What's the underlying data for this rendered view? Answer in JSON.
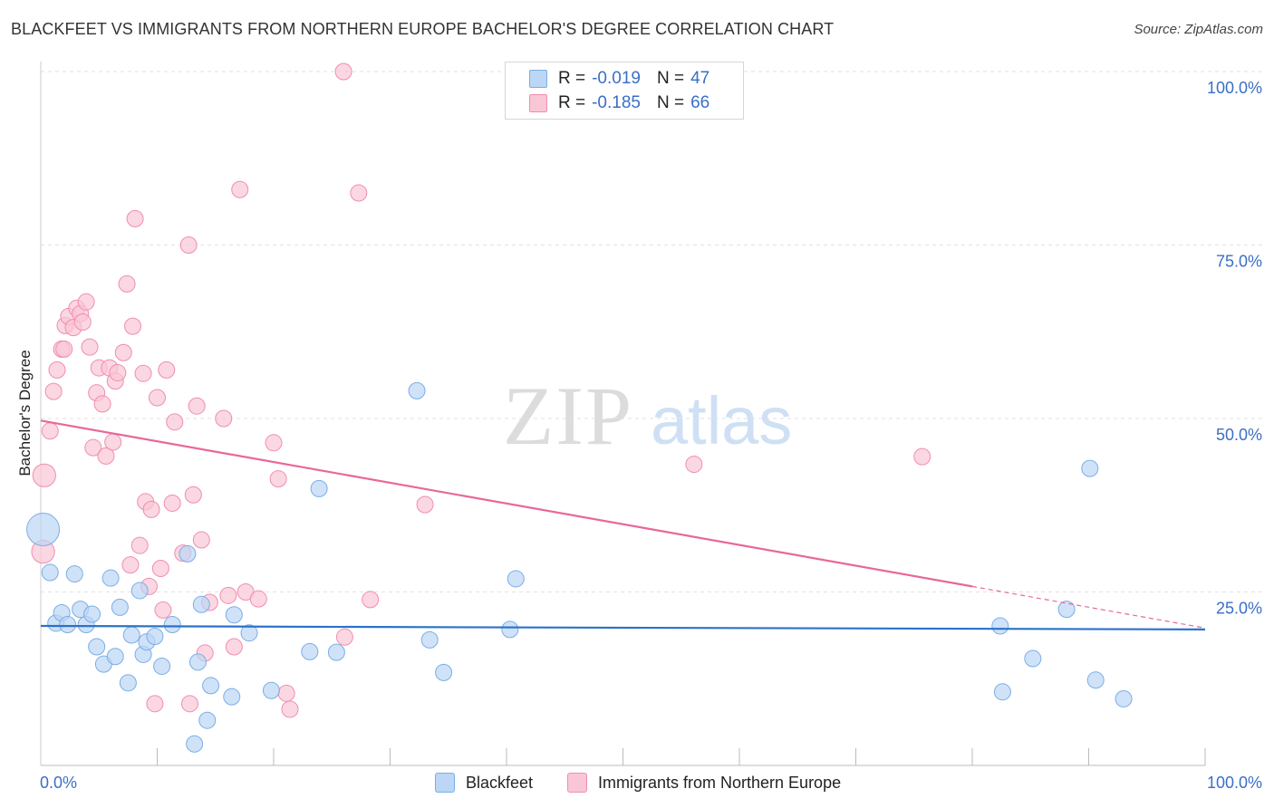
{
  "chart_data": {
    "type": "scatter",
    "title": "BLACKFEET VS IMMIGRANTS FROM NORTHERN EUROPE BACHELOR'S DEGREE CORRELATION CHART",
    "source": "Source: ZipAtlas.com",
    "xlabel": "",
    "ylabel": "Bachelor's Degree",
    "xlim": [
      0,
      100
    ],
    "ylim": [
      0,
      100
    ],
    "x_tick_labels": [
      "0.0%",
      "100.0%"
    ],
    "y_tick_labels": [
      {
        "value": 25,
        "label": "25.0%"
      },
      {
        "value": 50,
        "label": "50.0%"
      },
      {
        "value": 75,
        "label": "75.0%"
      },
      {
        "value": 100,
        "label": "100.0%"
      }
    ],
    "watermark": {
      "part1": "ZIP",
      "part2": "atlas"
    },
    "legend": {
      "rows": [
        {
          "r_label": "R =",
          "r_value": "-0.019",
          "n_label": "N =",
          "n_value": "47"
        },
        {
          "r_label": "R =",
          "r_value": "-0.185",
          "n_label": "N =",
          "n_value": "66"
        }
      ]
    },
    "series": [
      {
        "name": "Blackfeet",
        "color": "#7aaee6",
        "fill": "#bcd6f5",
        "trend_color": "#2a72c8",
        "trend": {
          "x": [
            0,
            100
          ],
          "y": [
            20.1,
            19.6
          ]
        },
        "points": [
          [
            0.2,
            34.0,
            2.0
          ],
          [
            0.8,
            27.8,
            1
          ],
          [
            1.3,
            20.5,
            1
          ],
          [
            1.8,
            22.0,
            1
          ],
          [
            2.3,
            20.3,
            1
          ],
          [
            2.9,
            27.6,
            1
          ],
          [
            3.4,
            22.5,
            1
          ],
          [
            3.9,
            20.3,
            1
          ],
          [
            4.4,
            21.8,
            1
          ],
          [
            4.8,
            17.1,
            1
          ],
          [
            5.4,
            14.6,
            1
          ],
          [
            6.0,
            27.0,
            1
          ],
          [
            6.4,
            15.7,
            1
          ],
          [
            6.8,
            22.8,
            1
          ],
          [
            7.5,
            11.9,
            1
          ],
          [
            7.8,
            18.8,
            1
          ],
          [
            8.5,
            25.2,
            1
          ],
          [
            8.8,
            16.0,
            1
          ],
          [
            9.1,
            17.8,
            1
          ],
          [
            9.8,
            18.6,
            1
          ],
          [
            10.4,
            14.3,
            1
          ],
          [
            11.3,
            20.3,
            1
          ],
          [
            12.6,
            30.5,
            1
          ],
          [
            13.2,
            3.1,
            1
          ],
          [
            13.5,
            14.9,
            1
          ],
          [
            13.8,
            23.2,
            1
          ],
          [
            14.3,
            6.5,
            1
          ],
          [
            14.6,
            11.5,
            1
          ],
          [
            16.4,
            9.9,
            1
          ],
          [
            16.6,
            21.7,
            1
          ],
          [
            17.9,
            19.1,
            1
          ],
          [
            19.8,
            10.8,
            1
          ],
          [
            23.1,
            16.4,
            1
          ],
          [
            23.9,
            39.9,
            1
          ],
          [
            25.4,
            16.3,
            1
          ],
          [
            32.3,
            54.0,
            1
          ],
          [
            33.4,
            18.1,
            1
          ],
          [
            34.6,
            13.4,
            1
          ],
          [
            40.3,
            19.6,
            1
          ],
          [
            40.8,
            26.9,
            1
          ],
          [
            82.4,
            20.1,
            1
          ],
          [
            82.6,
            10.6,
            1
          ],
          [
            85.2,
            15.4,
            1
          ],
          [
            88.1,
            22.5,
            1
          ],
          [
            90.1,
            42.8,
            1
          ],
          [
            90.6,
            12.3,
            1
          ],
          [
            93.0,
            9.6,
            1
          ]
        ]
      },
      {
        "name": "Immigrants from Northern Europe",
        "color": "#f08db0",
        "fill": "#f9c6d6",
        "trend_color": "#e8679a",
        "trend": {
          "x": [
            0,
            80
          ],
          "y": [
            49.7,
            25.8
          ]
        },
        "trend_dashed": {
          "x": [
            80,
            100
          ],
          "y": [
            25.8,
            19.8
          ]
        },
        "points": [
          [
            0.3,
            41.8,
            1.4
          ],
          [
            0.2,
            30.8,
            1.4
          ],
          [
            0.8,
            48.2,
            1
          ],
          [
            1.1,
            53.9,
            1
          ],
          [
            1.4,
            57.0,
            1
          ],
          [
            1.8,
            60.0,
            1
          ],
          [
            2.0,
            60.0,
            1
          ],
          [
            2.1,
            63.4,
            1
          ],
          [
            2.4,
            64.7,
            1
          ],
          [
            2.8,
            63.1,
            1
          ],
          [
            3.1,
            65.9,
            1
          ],
          [
            3.4,
            65.1,
            1
          ],
          [
            3.6,
            63.9,
            1
          ],
          [
            3.9,
            66.8,
            1
          ],
          [
            4.2,
            60.3,
            1
          ],
          [
            4.5,
            45.8,
            1
          ],
          [
            4.8,
            53.7,
            1
          ],
          [
            5.0,
            57.3,
            1
          ],
          [
            5.3,
            52.1,
            1
          ],
          [
            5.6,
            44.6,
            1
          ],
          [
            5.9,
            57.3,
            1
          ],
          [
            6.2,
            46.6,
            1
          ],
          [
            6.4,
            55.4,
            1
          ],
          [
            6.6,
            56.6,
            1
          ],
          [
            7.1,
            59.5,
            1
          ],
          [
            7.4,
            69.4,
            1
          ],
          [
            7.7,
            28.9,
            1
          ],
          [
            7.9,
            63.3,
            1
          ],
          [
            8.1,
            78.8,
            1
          ],
          [
            8.5,
            31.7,
            1
          ],
          [
            8.8,
            56.5,
            1
          ],
          [
            9.0,
            38.0,
            1
          ],
          [
            9.3,
            25.8,
            1
          ],
          [
            9.5,
            36.9,
            1
          ],
          [
            9.8,
            8.9,
            1
          ],
          [
            10.0,
            53.0,
            1
          ],
          [
            10.3,
            28.4,
            1
          ],
          [
            10.5,
            22.4,
            1
          ],
          [
            10.8,
            57.0,
            1
          ],
          [
            11.3,
            37.8,
            1
          ],
          [
            11.5,
            49.5,
            1
          ],
          [
            12.2,
            30.6,
            1
          ],
          [
            12.7,
            75.0,
            1
          ],
          [
            12.8,
            8.9,
            1
          ],
          [
            13.1,
            39.0,
            1
          ],
          [
            13.4,
            51.8,
            1
          ],
          [
            13.8,
            32.5,
            1
          ],
          [
            14.1,
            16.2,
            1
          ],
          [
            14.5,
            23.5,
            1
          ],
          [
            15.7,
            50.0,
            1
          ],
          [
            16.1,
            24.5,
            1
          ],
          [
            16.6,
            17.1,
            1
          ],
          [
            17.1,
            83.0,
            1
          ],
          [
            17.6,
            25.0,
            1
          ],
          [
            18.7,
            24.0,
            1
          ],
          [
            20.0,
            46.5,
            1
          ],
          [
            20.4,
            41.3,
            1
          ],
          [
            21.1,
            10.4,
            1
          ],
          [
            21.4,
            8.1,
            1
          ],
          [
            26.0,
            100.0,
            1
          ],
          [
            26.1,
            18.5,
            1
          ],
          [
            27.3,
            82.5,
            1
          ],
          [
            28.3,
            23.9,
            1
          ],
          [
            33.0,
            37.6,
            1
          ],
          [
            56.1,
            43.4,
            1
          ],
          [
            75.7,
            44.5,
            1
          ]
        ]
      }
    ]
  }
}
